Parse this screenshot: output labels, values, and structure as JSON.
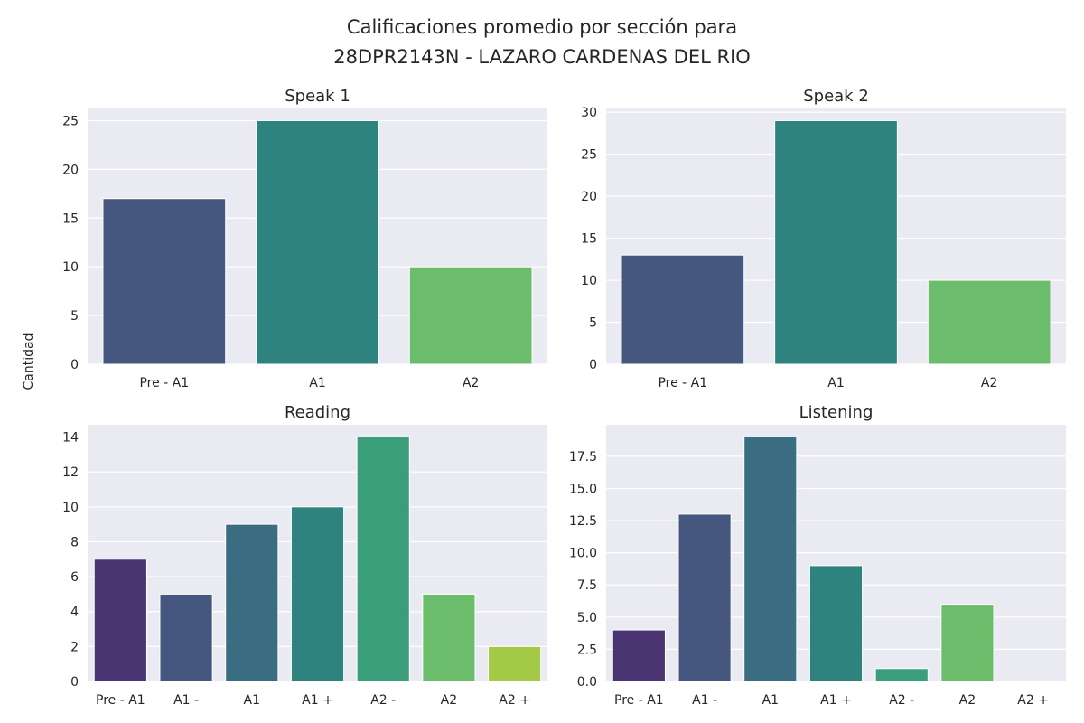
{
  "figure": {
    "title_line1": "Calificaciones promedio por sección para",
    "title_line2": "28DPR2143N - LAZARO CARDENAS DEL RIO",
    "ylabel": "Cantidad"
  },
  "chart_data": [
    {
      "type": "bar",
      "title": "Speak 1",
      "categories": [
        "Pre - A1",
        "A1",
        "A2"
      ],
      "values": [
        17,
        25,
        10
      ],
      "colors": [
        "#46577f",
        "#2e837e",
        "#6bbd6c"
      ],
      "ylim": [
        0,
        26.25
      ],
      "yticks": [
        0,
        5,
        10,
        15,
        20,
        25
      ],
      "yticklabels": [
        "0",
        "5",
        "10",
        "15",
        "20",
        "25"
      ],
      "grid": true
    },
    {
      "type": "bar",
      "title": "Speak 2",
      "categories": [
        "Pre - A1",
        "A1",
        "A2"
      ],
      "values": [
        13,
        29,
        10
      ],
      "colors": [
        "#46577f",
        "#2e837e",
        "#6bbd6c"
      ],
      "ylim": [
        0,
        30.45
      ],
      "yticks": [
        0,
        5,
        10,
        15,
        20,
        25,
        30
      ],
      "yticklabels": [
        "0",
        "5",
        "10",
        "15",
        "20",
        "25",
        "30"
      ],
      "grid": true
    },
    {
      "type": "bar",
      "title": "Reading",
      "categories": [
        "Pre - A1",
        "A1 -",
        "A1",
        "A1 +",
        "A2 -",
        "A2",
        "A2 +"
      ],
      "values": [
        7,
        5,
        9,
        10,
        14,
        5,
        2
      ],
      "colors": [
        "#4a3572",
        "#46577f",
        "#3a6d82",
        "#2e837e",
        "#3b9e7b",
        "#6bbd6c",
        "#a3c946"
      ],
      "ylim": [
        0,
        14.7
      ],
      "yticks": [
        0,
        2,
        4,
        6,
        8,
        10,
        12,
        14
      ],
      "yticklabels": [
        "0",
        "2",
        "4",
        "6",
        "8",
        "10",
        "12",
        "14"
      ],
      "grid": true
    },
    {
      "type": "bar",
      "title": "Listening",
      "categories": [
        "Pre - A1",
        "A1 -",
        "A1",
        "A1 +",
        "A2 -",
        "A2",
        "A2 +"
      ],
      "values": [
        4,
        13,
        19,
        9,
        1,
        6,
        0
      ],
      "colors": [
        "#4a3572",
        "#46577f",
        "#3a6d82",
        "#2e837e",
        "#3b9e7b",
        "#6bbd6c",
        "#a3c946"
      ],
      "ylim": [
        0,
        19.95
      ],
      "yticks": [
        0,
        2.5,
        5,
        7.5,
        10,
        12.5,
        15,
        17.5
      ],
      "yticklabels": [
        "0.0",
        "2.5",
        "5.0",
        "7.5",
        "10.0",
        "12.5",
        "15.0",
        "17.5"
      ],
      "grid": true
    }
  ],
  "style": {
    "axes_facecolor": "#eaeaf2",
    "grid_color": "#ffffff"
  }
}
